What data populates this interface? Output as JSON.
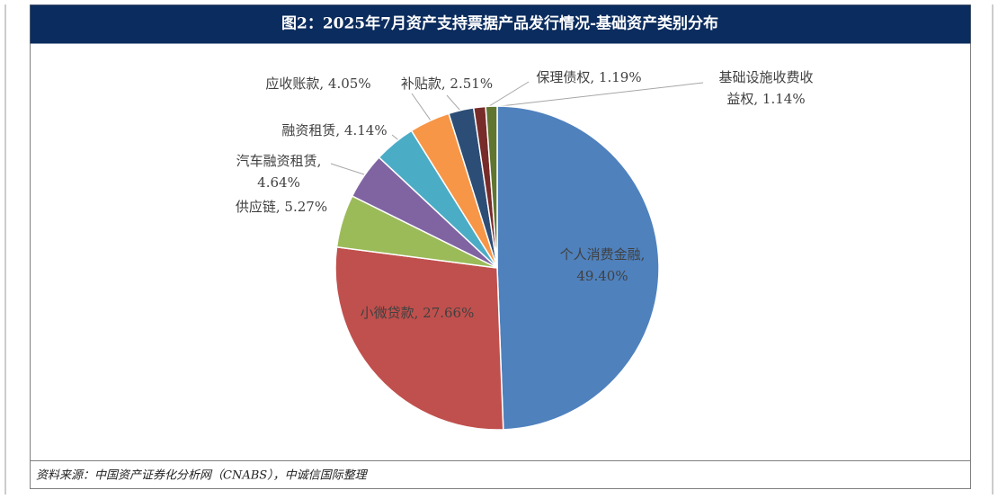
{
  "chart_data": {
    "type": "pie",
    "title": "图2：2025年7月资产支持票据产品发行情况-基础资产类别分布",
    "values": [
      49.4,
      27.66,
      5.27,
      4.64,
      4.14,
      4.05,
      2.51,
      1.19,
      1.14
    ],
    "value_labels": [
      "个人消费金融, 49.40%",
      "小微贷款, 27.66%",
      "供应链, 5.27%",
      "汽车融资租赁, 4.64%",
      "融资租赁, 4.14%",
      "应收账款, 4.05%",
      "补贴款, 2.51%",
      "保理债权, 1.19%",
      "基础设施收费收益权, 1.14%"
    ],
    "colors": [
      "#4f81bd",
      "#c0504d",
      "#9bbb59",
      "#8064a2",
      "#4bacc6",
      "#f79646",
      "#2c4d75",
      "#772c2a",
      "#5f7530"
    ],
    "source": "资料来源：中国资产证券化分析网（CNABS），中诚信国际整理"
  }
}
